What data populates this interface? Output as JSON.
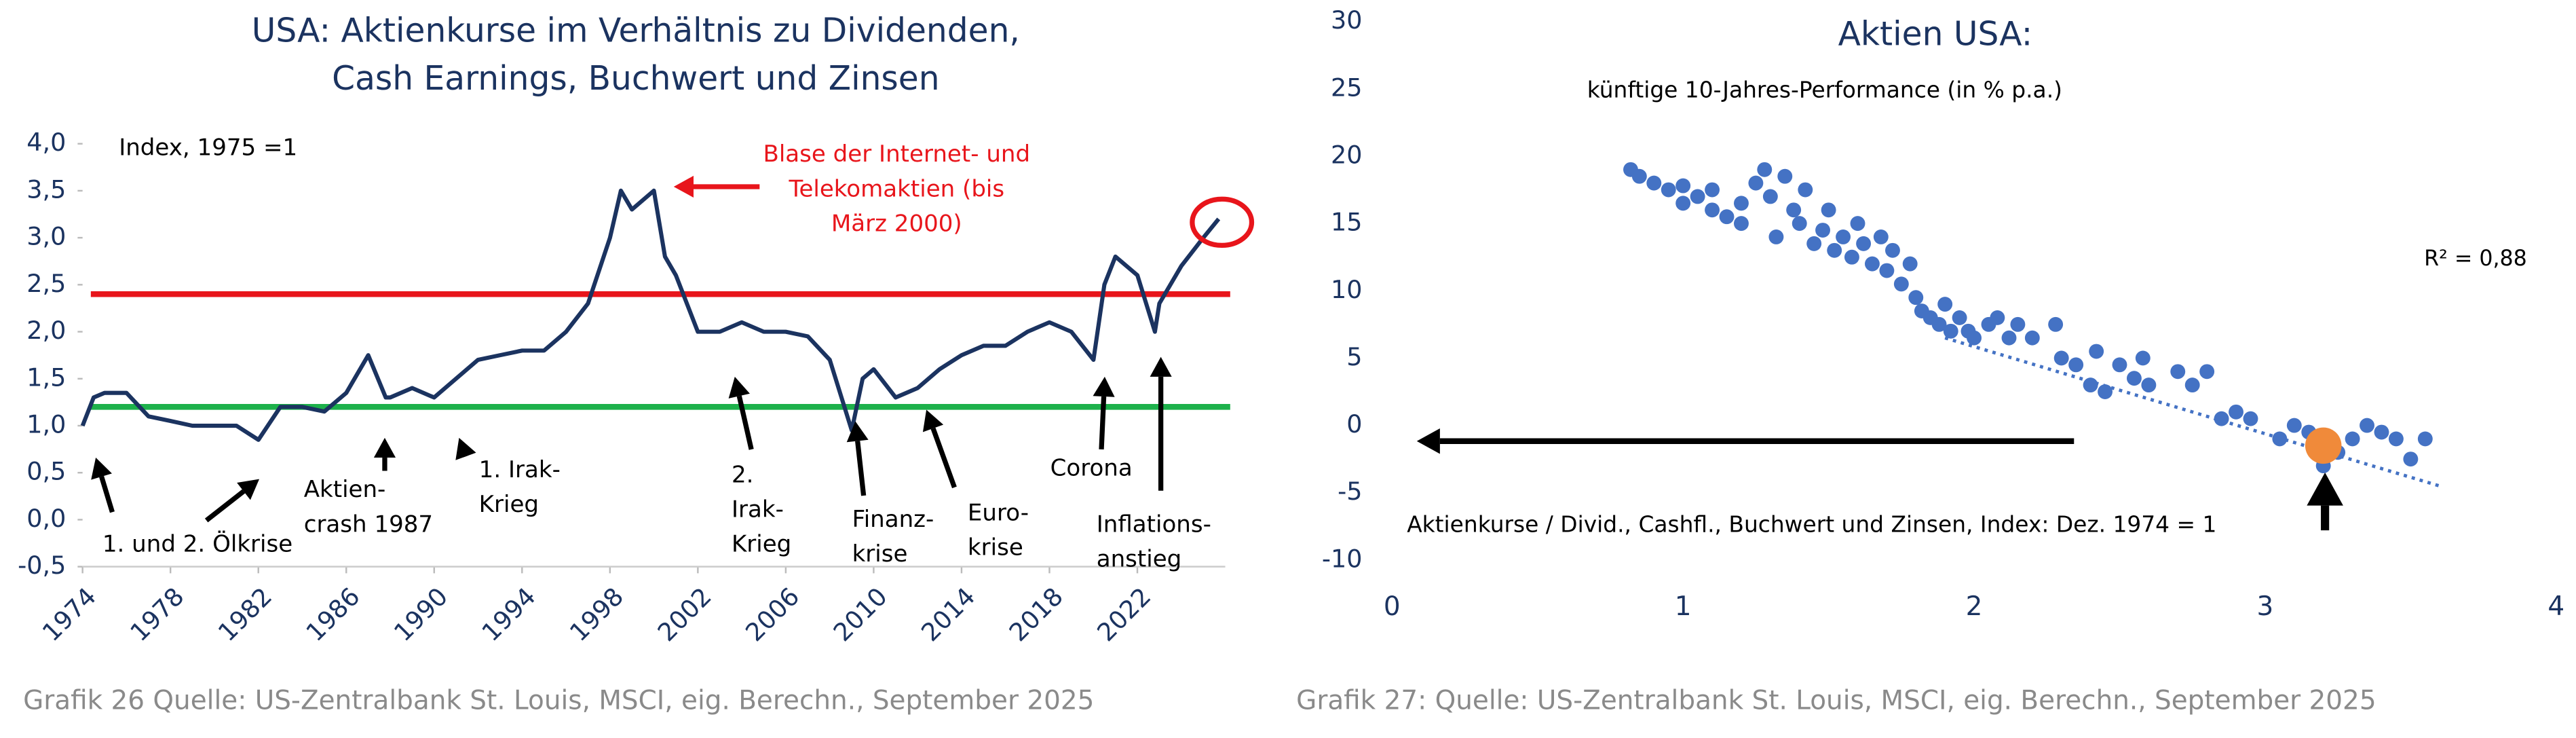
{
  "chart_data": [
    {
      "type": "line",
      "title": [
        "USA: Aktienkurse im Verhältnis zu Dividenden,",
        "Cash Earnings, Buchwert und Zinsen"
      ],
      "note": "Index, 1975 =1",
      "x": [
        1974,
        1974.5,
        1975,
        1976,
        1977,
        1978,
        1979,
        1980,
        1981,
        1982,
        1983,
        1984,
        1985,
        1986,
        1987,
        1987.8,
        1988,
        1989,
        1990,
        1991,
        1992,
        1993,
        1994,
        1995,
        1996,
        1997,
        1998,
        1998.5,
        1999,
        2000,
        2000.5,
        2001,
        2002,
        2003,
        2004,
        2005,
        2006,
        2007,
        2008,
        2009,
        2009.5,
        2010,
        2011,
        2012,
        2013,
        2014,
        2015,
        2016,
        2017,
        2018,
        2019,
        2020,
        2020.5,
        2021,
        2022,
        2022.8,
        2023,
        2024,
        2025,
        2025.7
      ],
      "values": [
        1.0,
        1.3,
        1.35,
        1.35,
        1.1,
        1.05,
        1.0,
        1.0,
        1.0,
        0.85,
        1.2,
        1.2,
        1.15,
        1.35,
        1.75,
        1.3,
        1.3,
        1.4,
        1.3,
        1.5,
        1.7,
        1.75,
        1.8,
        1.8,
        2.0,
        2.3,
        3.0,
        3.5,
        3.3,
        3.5,
        2.8,
        2.6,
        2.0,
        2.0,
        2.1,
        2.0,
        2.0,
        1.95,
        1.7,
        0.95,
        1.5,
        1.6,
        1.3,
        1.4,
        1.6,
        1.75,
        1.85,
        1.85,
        2.0,
        2.1,
        2.0,
        1.7,
        2.5,
        2.8,
        2.6,
        2.0,
        2.3,
        2.7,
        3.0,
        3.2
      ],
      "color": "#1b3360",
      "hlines": [
        {
          "value": 2.4,
          "color": "#e8151b"
        },
        {
          "value": 1.2,
          "color": "#1db14b"
        }
      ],
      "xlim": [
        1974,
        2026
      ],
      "xticks": [
        1974,
        1978,
        1982,
        1986,
        1990,
        1994,
        1998,
        2002,
        2006,
        2010,
        2014,
        2018,
        2022
      ],
      "ylim": [
        -0.5,
        4.0
      ],
      "yticks": [
        {
          "value": -0.5,
          "label": "-0,5"
        },
        {
          "value": 0,
          "label": "0,0"
        },
        {
          "value": 0.5,
          "label": "0,5"
        },
        {
          "value": 1.0,
          "label": "1,0"
        },
        {
          "value": 1.5,
          "label": "1,5"
        },
        {
          "value": 2.0,
          "label": "2,0"
        },
        {
          "value": 2.5,
          "label": "2,5"
        },
        {
          "value": 3.0,
          "label": "3,0"
        },
        {
          "value": 3.5,
          "label": "3,5"
        },
        {
          "value": 4.0,
          "label": "4,0"
        }
      ],
      "annotations": [
        {
          "lines": [
            "Blase der Internet- und",
            "Telekomaktien (bis",
            "März 2000)"
          ],
          "color": "#e8151b"
        },
        {
          "lines": [
            "1. und 2. Ölkrise"
          ]
        },
        {
          "lines": [
            "Aktien-",
            "crash 1987"
          ]
        },
        {
          "lines": [
            "1. Irak-",
            "Krieg"
          ]
        },
        {
          "lines": [
            "2.",
            "Irak-",
            "Krieg"
          ]
        },
        {
          "lines": [
            "Finanz-",
            "krise"
          ]
        },
        {
          "lines": [
            "Euro-",
            "krise"
          ]
        },
        {
          "lines": [
            "Corona"
          ]
        },
        {
          "lines": [
            "Inflations-",
            "anstieg"
          ]
        }
      ],
      "source": "Grafik 26 Quelle: US-Zentralbank St. Louis, MSCI, eig. Berechn., September 2025"
    },
    {
      "type": "scatter",
      "title": "Aktien USA:",
      "subtitle": "künftige 10-Jahres-Performance (in % p.a.)",
      "x_label": "Aktienkurse / Divid., Cashfl., Buchwert und Zinsen, Index: Dez. 1974 = 1",
      "r2_label": "R² = 0,88",
      "color": "#4472c4",
      "x": [
        0.82,
        0.85,
        0.9,
        0.95,
        1.0,
        1.0,
        1.05,
        1.1,
        1.1,
        1.15,
        1.2,
        1.2,
        1.25,
        1.28,
        1.3,
        1.32,
        1.35,
        1.38,
        1.4,
        1.42,
        1.45,
        1.48,
        1.5,
        1.52,
        1.55,
        1.58,
        1.6,
        1.62,
        1.65,
        1.68,
        1.7,
        1.72,
        1.75,
        1.78,
        1.8,
        1.82,
        1.85,
        1.88,
        1.9,
        1.92,
        1.95,
        1.98,
        2.0,
        2.05,
        2.08,
        2.12,
        2.15,
        2.2,
        2.28,
        2.3,
        2.35,
        2.4,
        2.42,
        2.45,
        2.5,
        2.55,
        2.58,
        2.6,
        2.7,
        2.75,
        2.8,
        2.85,
        2.9,
        2.95,
        3.05,
        3.1,
        3.15,
        3.2,
        3.25,
        3.3,
        3.35,
        3.4,
        3.45,
        3.5,
        3.55
      ],
      "y": [
        19,
        18.5,
        18,
        17.5,
        17.8,
        16.5,
        17,
        16,
        17.5,
        15.5,
        16.5,
        15,
        18,
        19,
        17,
        14,
        18.5,
        16,
        15,
        17.5,
        13.5,
        14.5,
        16,
        13,
        14,
        12.5,
        15,
        13.5,
        12,
        14,
        11.5,
        13,
        10.5,
        12,
        9.5,
        8.5,
        8,
        7.5,
        9,
        7,
        8,
        7,
        6.5,
        7.5,
        8,
        6.5,
        7.5,
        6.5,
        7.5,
        5,
        4.5,
        3,
        5.5,
        2.5,
        4.5,
        3.5,
        5,
        3,
        4,
        3,
        4,
        0.5,
        1,
        0.5,
        -1,
        0,
        -0.5,
        -3,
        -2,
        -1,
        0,
        -0.5,
        -1,
        -2.5,
        -1
      ],
      "highlight": {
        "x": 3.2,
        "y": -1.5,
        "color": "#f08a3a"
      },
      "trendline": {
        "x": [
          1.9,
          3.6
        ],
        "y": [
          6.5,
          -4.5
        ]
      },
      "xlim": [
        0,
        4
      ],
      "xticks": [
        0,
        1,
        2,
        3,
        4
      ],
      "ylim": [
        -10,
        30
      ],
      "yticks": [
        -10,
        -5,
        0,
        5,
        10,
        15,
        20,
        25,
        30
      ],
      "source": "Grafik 27: Quelle: US-Zentralbank St. Louis, MSCI, eig. Berechn., September 2025"
    }
  ]
}
